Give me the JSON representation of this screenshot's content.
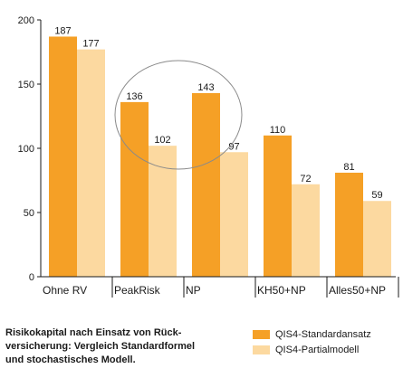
{
  "chart_data": {
    "type": "bar",
    "categories": [
      "Ohne RV",
      "PeakRisk",
      "NP",
      "KH50+NP",
      "Alles50+NP"
    ],
    "series": [
      {
        "name": "QIS4-Standardansatz",
        "values": [
          187,
          136,
          143,
          110,
          81
        ],
        "color": "#f5a026"
      },
      {
        "name": "QIS4-Partialmodell",
        "values": [
          177,
          102,
          97,
          72,
          59
        ],
        "color": "#fcd9a0"
      }
    ],
    "data_labels": [
      [
        "187",
        "136",
        "143",
        "110",
        "81"
      ],
      [
        "177",
        "102",
        "97",
        "72",
        "59"
      ]
    ],
    "yticks": [
      "0",
      "50",
      "100",
      "150",
      "200"
    ],
    "ytick_values": [
      0,
      50,
      100,
      150,
      200
    ],
    "ylim": [
      0,
      200
    ],
    "grid": false,
    "legend_position": "bottom-right",
    "annotation": "ellipse highlighting PeakRisk and NP",
    "caption_lines": [
      "Risikokapital nach Einsatz von Rück-",
      "versicherung: Vergleich Standardformel",
      "und stochastisches Modell."
    ]
  }
}
